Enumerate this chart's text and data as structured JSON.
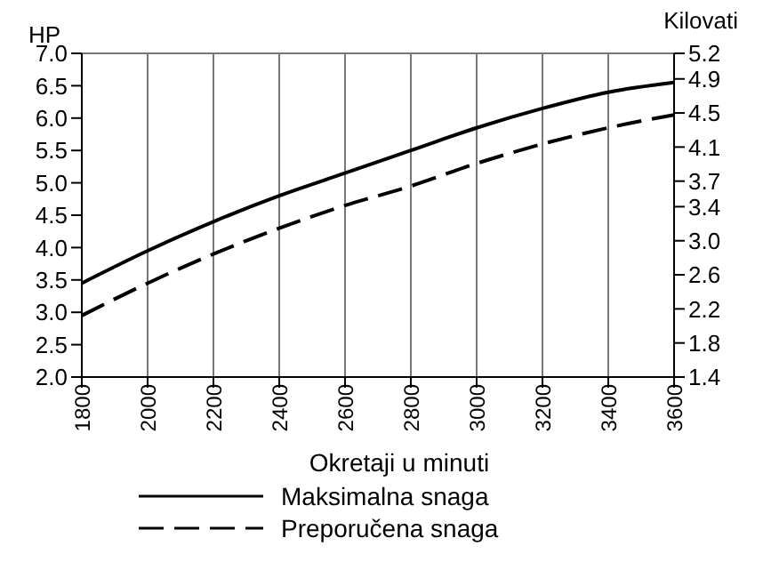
{
  "chart_data": {
    "type": "line",
    "xlabel": "Okretaji u minuti",
    "ylabel": "HP",
    "y2label": "Kilovati",
    "x": [
      1800,
      2000,
      2200,
      2400,
      2600,
      2800,
      3000,
      3200,
      3400,
      3600
    ],
    "series": [
      {
        "name": "Maksimalna snaga",
        "color": "#000000",
        "line_style": "solid",
        "values": [
          3.45,
          3.95,
          4.4,
          4.8,
          5.15,
          5.5,
          5.85,
          6.15,
          6.4,
          6.55
        ]
      },
      {
        "name": "Preporučena snaga",
        "color": "#000000",
        "line_style": "dashed",
        "values": [
          2.95,
          3.45,
          3.9,
          4.3,
          4.65,
          4.95,
          5.3,
          5.6,
          5.85,
          6.05
        ]
      }
    ],
    "xlim": [
      1800,
      3600
    ],
    "xticks": [
      1800,
      2000,
      2200,
      2400,
      2600,
      2800,
      3000,
      3200,
      3400,
      3600
    ],
    "ylim": [
      2,
      7
    ],
    "yticks": [
      {
        "value": 2,
        "label": "2.0"
      },
      {
        "value": 2.5,
        "label": "2.5"
      },
      {
        "value": 3,
        "label": "3.0"
      },
      {
        "value": 3.5,
        "label": "3.5"
      },
      {
        "value": 4,
        "label": "4.0"
      },
      {
        "value": 4.5,
        "label": "4.5"
      },
      {
        "value": 5,
        "label": "5.0"
      },
      {
        "value": 5.5,
        "label": "5.5"
      },
      {
        "value": 6,
        "label": "6.0"
      },
      {
        "value": 6.5,
        "label": "6.5"
      },
      {
        "value": 7,
        "label": "7.0"
      }
    ],
    "y2lim": [
      1.4,
      5.2
    ],
    "y2ticks": [
      1.4,
      1.8,
      2.2,
      2.6,
      {
        "value": 3,
        "label": "3.0"
      },
      3.4,
      3.7,
      4.1,
      4.5,
      4.9,
      5.2
    ],
    "grid": true,
    "legend": "bottom",
    "marker": "none"
  }
}
